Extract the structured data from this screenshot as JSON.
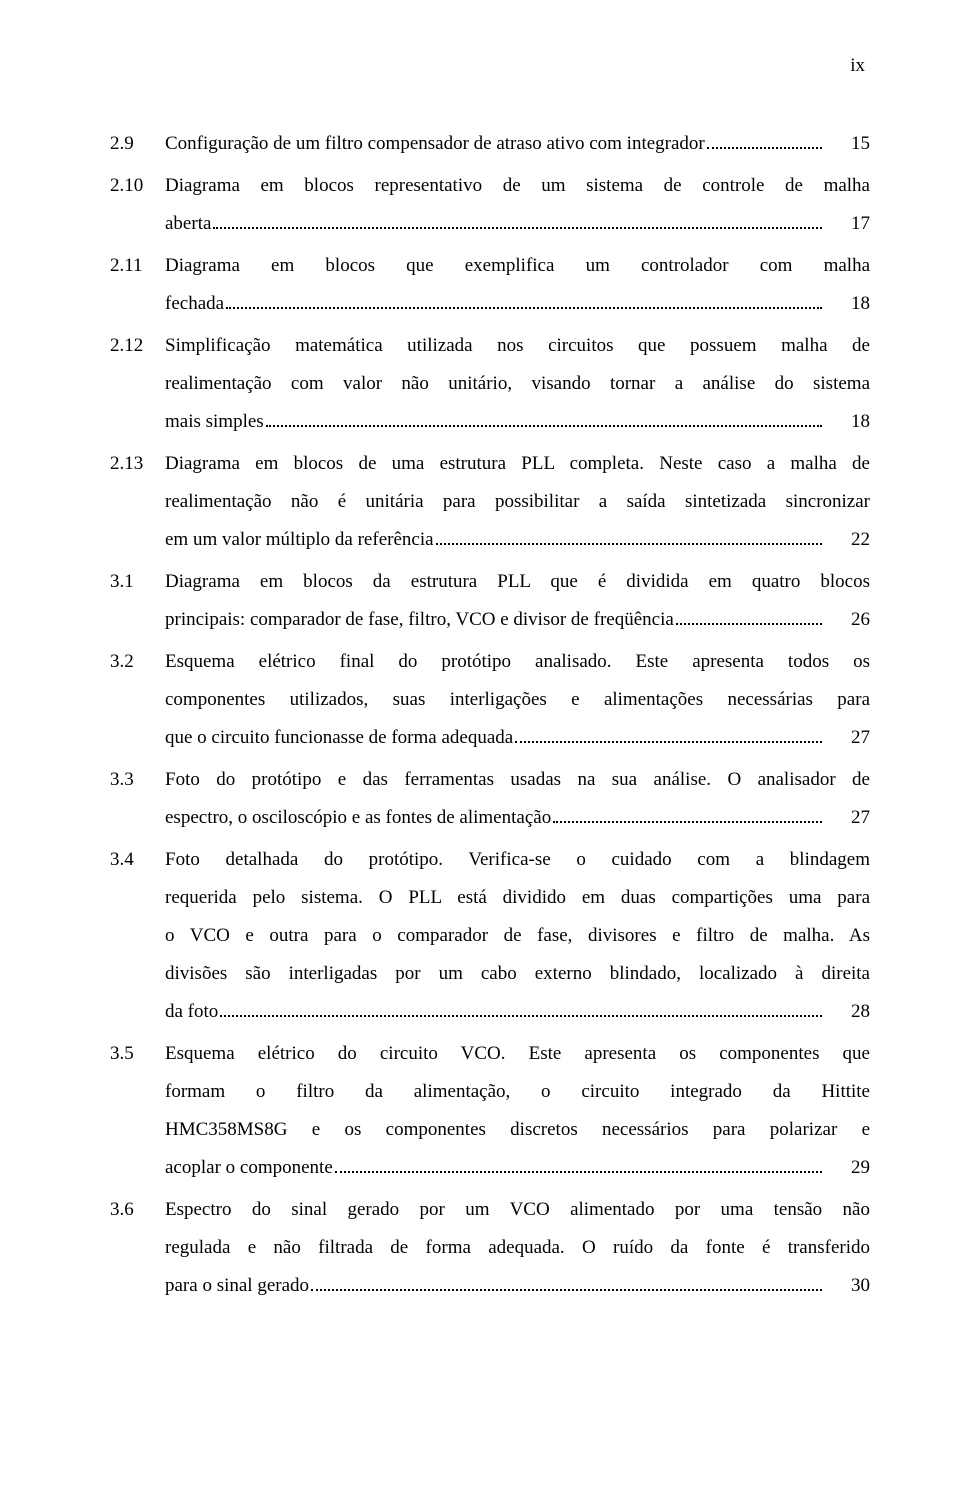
{
  "page_number_label": "ix",
  "entries": [
    {
      "num": "2.9",
      "lines": [
        {
          "type": "last",
          "text": "Configuração de um filtro compensador de atraso ativo com integrador",
          "page": "15"
        }
      ]
    },
    {
      "num": "2.10",
      "lines": [
        {
          "type": "just",
          "text": "Diagrama em blocos representativo de um sistema de controle de malha"
        },
        {
          "type": "last",
          "text": "aberta",
          "page": "17"
        }
      ]
    },
    {
      "num": "2.11",
      "lines": [
        {
          "type": "just",
          "text": "Diagrama em blocos que exemplifica um controlador com malha"
        },
        {
          "type": "last",
          "text": "fechada",
          "page": "18"
        }
      ]
    },
    {
      "num": "2.12",
      "lines": [
        {
          "type": "just",
          "text": "Simplificação matemática utilizada nos circuitos que possuem malha de"
        },
        {
          "type": "just",
          "text": "realimentação com valor não unitário, visando tornar a análise do sistema"
        },
        {
          "type": "last",
          "text": "mais simples",
          "page": "18"
        }
      ]
    },
    {
      "num": "2.13",
      "lines": [
        {
          "type": "just",
          "text": "Diagrama em blocos de uma estrutura PLL completa. Neste caso a malha de"
        },
        {
          "type": "just",
          "text": "realimentação não é unitária para possibilitar a saída sintetizada sincronizar"
        },
        {
          "type": "last",
          "text": "em um valor múltiplo da referência",
          "page": "22"
        }
      ]
    },
    {
      "num": "3.1",
      "lines": [
        {
          "type": "just",
          "text": "Diagrama em blocos da estrutura PLL que é dividida em quatro blocos"
        },
        {
          "type": "last",
          "text": "principais: comparador de fase, filtro, VCO e divisor de freqüência",
          "page": "26"
        }
      ]
    },
    {
      "num": "3.2",
      "lines": [
        {
          "type": "just",
          "text": "Esquema elétrico final do protótipo analisado. Este apresenta todos os"
        },
        {
          "type": "just",
          "text": "componentes utilizados, suas interligações e alimentações necessárias para"
        },
        {
          "type": "last",
          "text": "que o circuito funcionasse de forma adequada",
          "page": "27"
        }
      ]
    },
    {
      "num": "3.3",
      "lines": [
        {
          "type": "just",
          "text": "Foto do protótipo e das ferramentas usadas na sua análise. O analisador de"
        },
        {
          "type": "last",
          "text": "espectro, o osciloscópio e as fontes de alimentação",
          "page": "27"
        }
      ]
    },
    {
      "num": "3.4",
      "lines": [
        {
          "type": "just",
          "text": "Foto detalhada do protótipo. Verifica-se o cuidado com a blindagem"
        },
        {
          "type": "just",
          "text": "requerida pelo sistema. O PLL está dividido em duas compartições uma para"
        },
        {
          "type": "just",
          "text": "o VCO e outra para o comparador de fase, divisores e filtro de malha. As"
        },
        {
          "type": "just",
          "text": "divisões são interligadas por um cabo externo blindado, localizado à direita"
        },
        {
          "type": "last",
          "text": "da foto",
          "page": "28"
        }
      ]
    },
    {
      "num": "3.5",
      "lines": [
        {
          "type": "just",
          "text": "Esquema elétrico do circuito VCO. Este apresenta os componentes que"
        },
        {
          "type": "just",
          "text": "formam o filtro da alimentação, o circuito integrado da Hittite"
        },
        {
          "type": "just",
          "text": "HMC358MS8G e os componentes discretos necessários para polarizar e"
        },
        {
          "type": "last",
          "text": "acoplar o componente",
          "page": "29"
        }
      ]
    },
    {
      "num": "3.6",
      "lines": [
        {
          "type": "just",
          "text": "Espectro do sinal gerado por um VCO alimentado por uma tensão não"
        },
        {
          "type": "just",
          "text": "regulada e não filtrada de forma adequada. O ruído da fonte é transferido"
        },
        {
          "type": "last",
          "text": "para o sinal gerado",
          "page": "30"
        }
      ]
    }
  ]
}
